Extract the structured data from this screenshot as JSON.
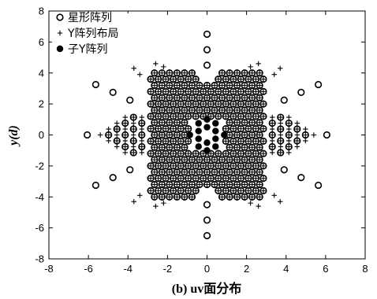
{
  "chart_data": {
    "type": "scatter",
    "xlabel": "(b) uv面分布",
    "ylabel": "y(d)",
    "xlim": [
      -8,
      8
    ],
    "ylim": [
      -8,
      8
    ],
    "xticks": [
      -8,
      -6,
      -4,
      -2,
      0,
      2,
      4,
      6,
      8
    ],
    "yticks": [
      -8,
      -6,
      -4,
      -2,
      0,
      2,
      4,
      6,
      8
    ],
    "grid": false,
    "legend_position": "top-left",
    "series": [
      {
        "name": "星形阵列",
        "marker": "open-circle",
        "description": "6-arm star (arms at 30°, 90°, 150°, 210°, 270°, 330°) plus dense central lattice",
        "arm_points": [
          [
            0,
            4.5
          ],
          [
            0,
            5.5
          ],
          [
            0,
            6.5
          ],
          [
            0,
            -4.5
          ],
          [
            0,
            -5.5
          ],
          [
            0,
            -6.5
          ],
          [
            3.9,
            2.25
          ],
          [
            4.76,
            2.75
          ],
          [
            5.63,
            3.25
          ],
          [
            -3.9,
            2.25
          ],
          [
            -4.76,
            2.75
          ],
          [
            -5.63,
            3.25
          ],
          [
            3.9,
            -2.25
          ],
          [
            4.76,
            -2.75
          ],
          [
            5.63,
            -3.25
          ],
          [
            -3.9,
            -2.25
          ],
          [
            -4.76,
            -2.75
          ],
          [
            -5.63,
            -3.25
          ],
          [
            6.06,
            0
          ],
          [
            -6.06,
            0
          ]
        ],
        "core_extent": {
          "x": [
            -3,
            3
          ],
          "y": [
            -4,
            4
          ]
        }
      },
      {
        "name": "Y阵列布局",
        "marker": "plus",
        "description": "dense '+' lattice covering the central region and horizontal spokes"
      },
      {
        "name": "子Y阵列",
        "marker": "filled-circle",
        "points": [
          [
            -0.43,
            0.25
          ],
          [
            -0.43,
            -0.25
          ],
          [
            -0.87,
            0
          ],
          [
            0.43,
            0.25
          ],
          [
            0.43,
            -0.25
          ],
          [
            0.87,
            0
          ],
          [
            0,
            0.5
          ],
          [
            0,
            -0.5
          ],
          [
            0,
            1
          ],
          [
            0,
            -1
          ],
          [
            -0.43,
            0.75
          ],
          [
            0.43,
            -0.75
          ],
          [
            0.43,
            0.75
          ],
          [
            -0.43,
            -0.75
          ]
        ]
      }
    ]
  }
}
